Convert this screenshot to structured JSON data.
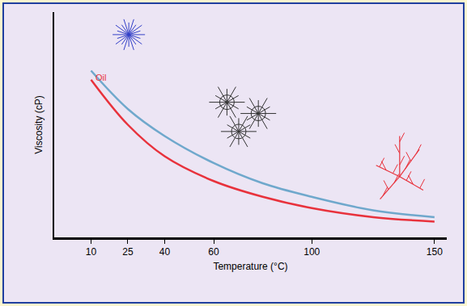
{
  "chart_data": {
    "type": "line",
    "x_label": "Temperature (°C)",
    "y_label": "Viscosity (cP)",
    "x": [
      10,
      25,
      40,
      60,
      80,
      100,
      125,
      150
    ],
    "series": [
      {
        "color": "#6fa8cc",
        "values": [
          74,
          57,
          45,
          33,
          24,
          18,
          12,
          9
        ]
      },
      {
        "name": "Oil",
        "color": "#e8323c",
        "values": [
          70,
          50,
          36,
          25,
          18,
          13,
          9,
          7
        ]
      }
    ],
    "xlim": [
      -5,
      155
    ],
    "xticks": [
      10,
      25,
      40,
      60,
      100,
      150
    ],
    "ylim": [
      0,
      100
    ],
    "tick_labels": "x",
    "grid": false
  }
}
